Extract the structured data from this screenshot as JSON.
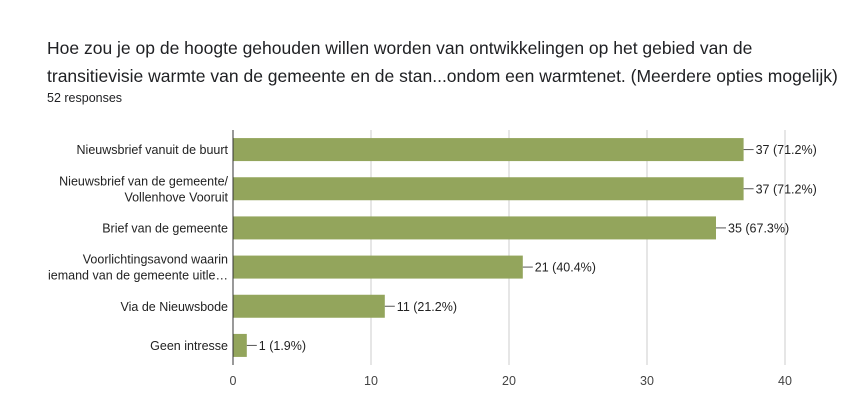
{
  "question": {
    "title": "Hoe zou je op de hoogte gehouden willen worden van ontwikkelingen op het gebied van de transitievisie warmte van de gemeente en de stan...ondom een warmtenet. (Meerdere opties mogelijk)",
    "responses": "52 responses"
  },
  "chart_data": {
    "type": "bar",
    "orientation": "horizontal",
    "categories": [
      [
        "Nieuwsbrief vanuit de buurt"
      ],
      [
        "Nieuwsbrief van de gemeente/",
        "Vollenhove Vooruit"
      ],
      [
        "Brief van de gemeente"
      ],
      [
        "Voorlichtingsavond waarin",
        "iemand van de gemeente uitle…"
      ],
      [
        "Via de Nieuwsbode"
      ],
      [
        "Geen intresse"
      ]
    ],
    "values": [
      37,
      37,
      35,
      21,
      11,
      1
    ],
    "value_labels": [
      "37 (71.2%)",
      "37 (71.2%)",
      "35 (67.3%)",
      "21 (40.4%)",
      "11 (21.2%)",
      "1 (1.9%)"
    ],
    "xlim": [
      0,
      40
    ],
    "xticks": [
      0,
      10,
      20,
      30,
      40
    ],
    "grid": true,
    "bar_color": "#93a55c",
    "grid_color": "#cccccc",
    "axis_color": "#333333"
  }
}
